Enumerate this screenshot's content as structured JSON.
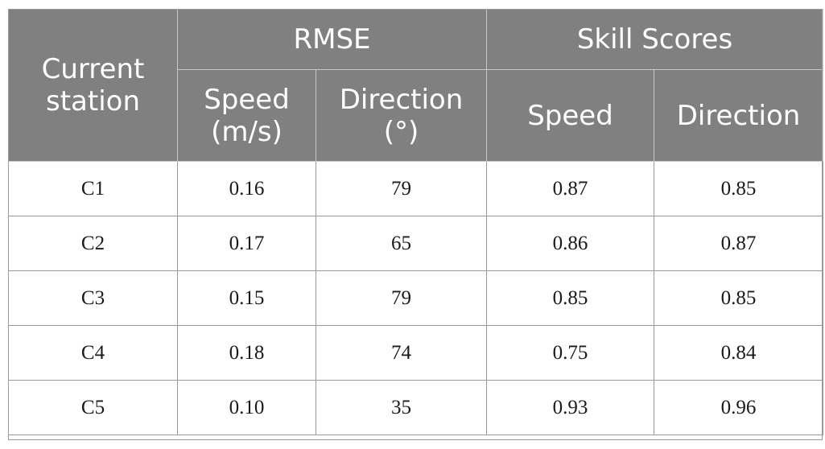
{
  "table": {
    "header": {
      "station": "Current station",
      "rmse": "RMSE",
      "skill": "Skill Scores",
      "rmse_speed": "Speed (m/s)",
      "rmse_direction": "Direction (°)",
      "skill_speed": "Speed",
      "skill_direction": "Direction"
    },
    "rows": [
      {
        "station": "C1",
        "rmse_speed": "0.16",
        "rmse_direction": "79",
        "skill_speed": "0.87",
        "skill_direction": "0.85"
      },
      {
        "station": "C2",
        "rmse_speed": "0.17",
        "rmse_direction": "65",
        "skill_speed": "0.86",
        "skill_direction": "0.87"
      },
      {
        "station": "C3",
        "rmse_speed": "0.15",
        "rmse_direction": "79",
        "skill_speed": "0.85",
        "skill_direction": "0.85"
      },
      {
        "station": "C4",
        "rmse_speed": "0.18",
        "rmse_direction": "74",
        "skill_speed": "0.75",
        "skill_direction": "0.84"
      },
      {
        "station": "C5",
        "rmse_speed": "0.10",
        "rmse_direction": "35",
        "skill_speed": "0.93",
        "skill_direction": "0.96"
      }
    ]
  },
  "colors": {
    "header_bg": "#808080",
    "header_text": "#ffffff",
    "body_text": "#1a1a1a"
  }
}
